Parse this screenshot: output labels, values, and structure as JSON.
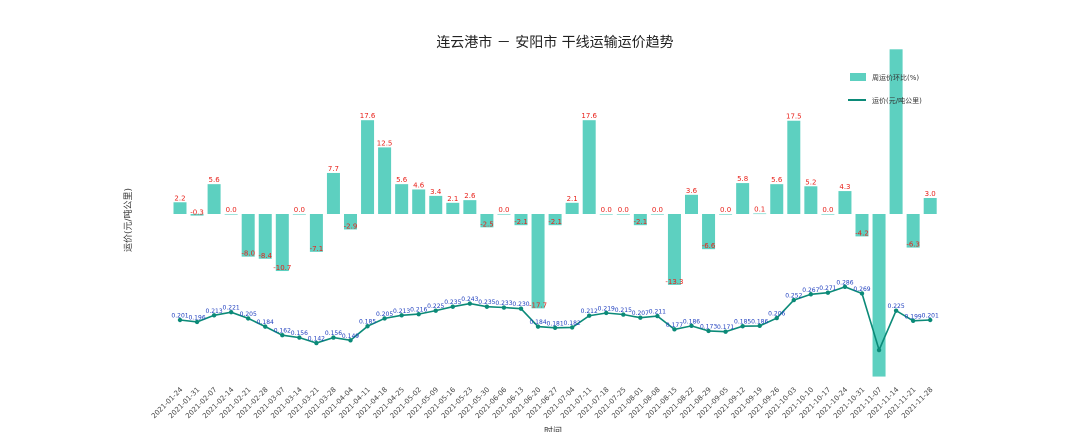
{
  "chart_data": {
    "type": "bar",
    "title": "连云港市 － 安阳市 干线运输运价趋势",
    "ylabel": "运价(元/吨公里)",
    "xlabel": "时间",
    "legend_position": "top-right",
    "colors": {
      "bar": "#5dd0c0",
      "line": "#0b8a78",
      "bar_label": "#e8211a",
      "line_label": "#1f3fbf"
    },
    "categories": [
      "2021-01-24",
      "2021-01-31",
      "2021-02-07",
      "2021-02-14",
      "2021-02-21",
      "2021-02-28",
      "2021-03-07",
      "2021-03-14",
      "2021-03-21",
      "2021-03-28",
      "2021-04-04",
      "2021-04-11",
      "2021-04-18",
      "2021-04-25",
      "2021-05-02",
      "2021-05-09",
      "2021-05-16",
      "2021-05-23",
      "2021-05-30",
      "2021-06-06",
      "2021-06-13",
      "2021-06-20",
      "2021-06-27",
      "2021-07-04",
      "2021-07-11",
      "2021-07-18",
      "2021-07-25",
      "2021-08-01",
      "2021-08-08",
      "2021-08-15",
      "2021-08-22",
      "2021-08-29",
      "2021-09-05",
      "2021-09-12",
      "2021-09-19",
      "2021-09-26",
      "2021-10-03",
      "2021-10-10",
      "2021-10-17",
      "2021-10-24",
      "2021-10-31",
      "2021-11-07",
      "2021-11-14",
      "2021-11-21",
      "2021-11-28"
    ],
    "series": [
      {
        "name": "周运价环比(%)",
        "kind": "bar",
        "values": [
          2.2,
          -0.3,
          5.6,
          0.0,
          -8.0,
          -8.4,
          -10.7,
          0.0,
          -7.1,
          7.7,
          -2.9,
          17.6,
          12.5,
          5.6,
          4.6,
          3.4,
          2.1,
          2.6,
          -2.5,
          0.0,
          -2.1,
          -17.7,
          -2.1,
          2.1,
          17.6,
          0.0,
          0.0,
          -2.1,
          0.0,
          -13.3,
          3.6,
          -6.6,
          0.0,
          5.8,
          0.1,
          5.6,
          17.5,
          5.2,
          0.0,
          4.3,
          -4.2,
          -30.5,
          30.9,
          -6.3,
          3.0
        ],
        "labels": [
          "2.2",
          "-0.3",
          "5.6",
          "0.0",
          "-8.0",
          "-8.4",
          "-10.7",
          "0.0",
          "-7.1",
          "7.7",
          "-2.9",
          "17.6",
          "12.5",
          "5.6",
          "4.6",
          "3.4",
          "2.1",
          "2.6",
          "-2.5",
          "0.0",
          "-2.1",
          "-17.7",
          "-2.1",
          "2.1",
          "17.6",
          "0.0",
          "0.0",
          "-2.1",
          "0.0",
          "-13.3",
          "3.6",
          "-6.6",
          "0.0",
          "5.8",
          "0.1",
          "5.6",
          "17.5",
          "5.2",
          "0.0",
          "4.3",
          "-4.2",
          "",
          "",
          "-6.3",
          "3.0"
        ]
      },
      {
        "name": "运价(元/吨公里)",
        "kind": "line",
        "values": [
          0.201,
          0.196,
          0.213,
          0.221,
          0.205,
          0.184,
          0.162,
          0.156,
          0.142,
          0.156,
          0.149,
          0.185,
          0.205,
          0.213,
          0.216,
          0.225,
          0.235,
          0.243,
          0.235,
          0.233,
          0.23,
          0.184,
          0.181,
          0.182,
          0.212,
          0.219,
          0.215,
          0.207,
          0.211,
          0.177,
          0.186,
          0.173,
          0.171,
          0.185,
          0.186,
          0.206,
          0.252,
          0.267,
          0.271,
          0.286,
          0.269,
          0.124,
          0.225,
          0.199,
          0.201
        ],
        "labels": [
          "0.201",
          "0.196",
          "0.213",
          "0.221",
          "0.205",
          "0.184",
          "0.162",
          "0.156",
          "0.142",
          "0.156",
          "0.149",
          "0.185",
          "0.205",
          "0.213",
          "0.216",
          "0.225",
          "0.235",
          "0.243",
          "0.235",
          "0.233",
          "0.230",
          "0.184",
          "0.181",
          "0.182",
          "0.212",
          "0.219",
          "0.215",
          "0.207",
          "0.211",
          "0.177",
          "0.186",
          "0.173",
          "0.171",
          "0.185",
          "0.186",
          "0.206",
          "0.252",
          "0.267",
          "0.271",
          "0.286",
          "0.269",
          "",
          "0.225",
          "0.199",
          "0.201"
        ]
      }
    ]
  }
}
